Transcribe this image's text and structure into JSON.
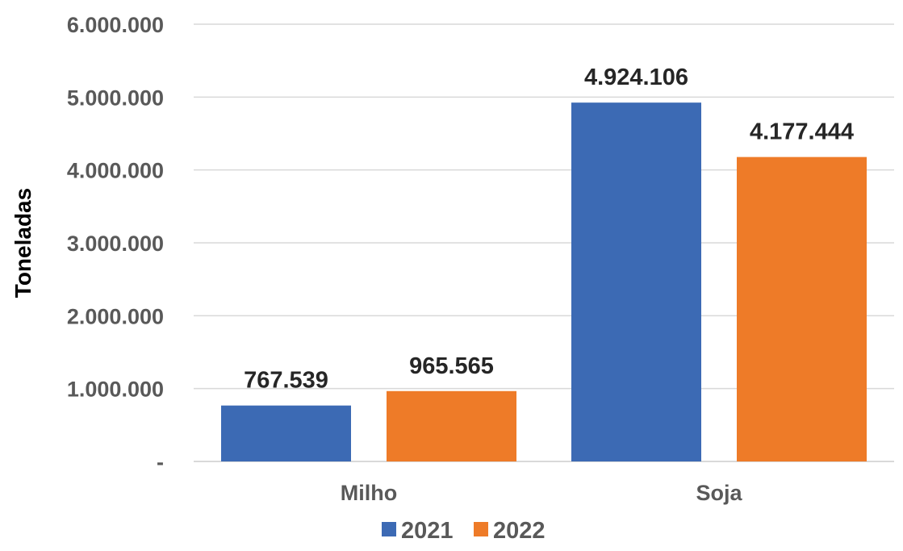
{
  "chart_data": {
    "type": "bar",
    "categories": [
      "Milho",
      "Soja"
    ],
    "series": [
      {
        "name": "2021",
        "values": [
          767539,
          4924106
        ],
        "labels": [
          "767.539",
          "4.924.106"
        ],
        "color": "#3C6AB4"
      },
      {
        "name": "2022",
        "values": [
          965565,
          4177444
        ],
        "labels": [
          "965.565",
          "4.177.444"
        ],
        "color": "#EE7B28"
      }
    ],
    "ylabel": "Toneladas",
    "xlabel": "",
    "ylim": [
      0,
      6000000
    ],
    "yticks": [
      {
        "value": 0,
        "label": "-"
      },
      {
        "value": 1000000,
        "label": "1.000.000"
      },
      {
        "value": 2000000,
        "label": "2.000.000"
      },
      {
        "value": 3000000,
        "label": "3.000.000"
      },
      {
        "value": 4000000,
        "label": "4.000.000"
      },
      {
        "value": 5000000,
        "label": "5.000.000"
      },
      {
        "value": 6000000,
        "label": "6.000.000"
      }
    ],
    "grid": true,
    "gridline_color": "#D9D9D9",
    "legend_position": "bottom"
  }
}
